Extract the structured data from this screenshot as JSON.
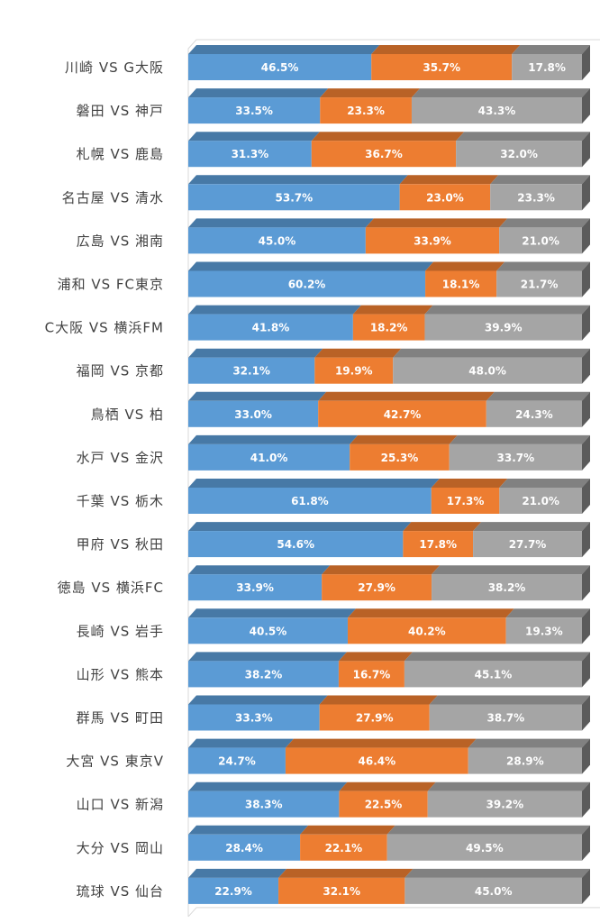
{
  "chart_data": {
    "type": "bar",
    "orientation": "horizontal",
    "stacked": true,
    "stack_mode": "percent",
    "three_d": true,
    "grid": false,
    "legend": "none",
    "categories": [
      "川崎 VS G大阪",
      "磐田 VS 神戸",
      "札幌 VS 鹿島",
      "名古屋 VS 清水",
      "広島 VS 湘南",
      "浦和 VS FC東京",
      "C大阪 VS 横浜FM",
      "福岡 VS 京都",
      "鳥栖 VS 柏",
      "水戸 VS 金沢",
      "千葉 VS 栃木",
      "甲府 VS 秋田",
      "徳島 VS 横浜FC",
      "長崎 VS 岩手",
      "山形 VS 熊本",
      "群馬 VS 町田",
      "大宮 VS 東京V",
      "山口 VS 新潟",
      "大分 VS 岡山",
      "琉球 VS 仙台"
    ],
    "series": [
      {
        "color": "#5b9bd5",
        "values": [
          46.5,
          33.5,
          31.3,
          53.7,
          45.0,
          60.2,
          41.8,
          32.1,
          33.0,
          41.0,
          61.8,
          54.6,
          33.9,
          40.5,
          38.2,
          33.3,
          24.7,
          38.3,
          28.4,
          22.9
        ],
        "labels": [
          "46.5%",
          "33.5%",
          "31.3%",
          "53.7%",
          "45.0%",
          "60.2%",
          "41.8%",
          "32.1%",
          "33.0%",
          "41.0%",
          "61.8%",
          "54.6%",
          "33.9%",
          "40.5%",
          "38.2%",
          "33.3%",
          "24.7%",
          "38.3%",
          "28.4%",
          "22.9%"
        ]
      },
      {
        "color": "#ed7d31",
        "values": [
          35.7,
          23.3,
          36.7,
          23.0,
          33.9,
          18.1,
          18.2,
          19.9,
          42.7,
          25.3,
          17.3,
          17.8,
          27.9,
          40.2,
          16.7,
          27.9,
          46.4,
          22.5,
          22.1,
          32.1
        ],
        "labels": [
          "35.7%",
          "23.3%",
          "36.7%",
          "23.0%",
          "33.9%",
          "18.1%",
          "18.2%",
          "19.9%",
          "42.7%",
          "25.3%",
          "17.3%",
          "17.8%",
          "27.9%",
          "40.2%",
          "16.7%",
          "27.9%",
          "46.4%",
          "22.5%",
          "22.1%",
          "32.1%"
        ]
      },
      {
        "color": "#a5a5a5",
        "values": [
          17.8,
          43.3,
          32.0,
          23.3,
          21.0,
          21.7,
          39.9,
          48.0,
          24.3,
          33.7,
          21.0,
          27.7,
          38.2,
          19.3,
          45.1,
          38.7,
          28.9,
          39.2,
          49.5,
          45.0
        ],
        "labels": [
          "17.8%",
          "43.3%",
          "32.0%",
          "23.3%",
          "21.0%",
          "21.7%",
          "39.9%",
          "48.0%",
          "24.3%",
          "33.7%",
          "21.0%",
          "27.7%",
          "38.2%",
          "19.3%",
          "45.1%",
          "38.7%",
          "28.9%",
          "39.2%",
          "49.5%",
          "45.0%"
        ]
      }
    ]
  }
}
